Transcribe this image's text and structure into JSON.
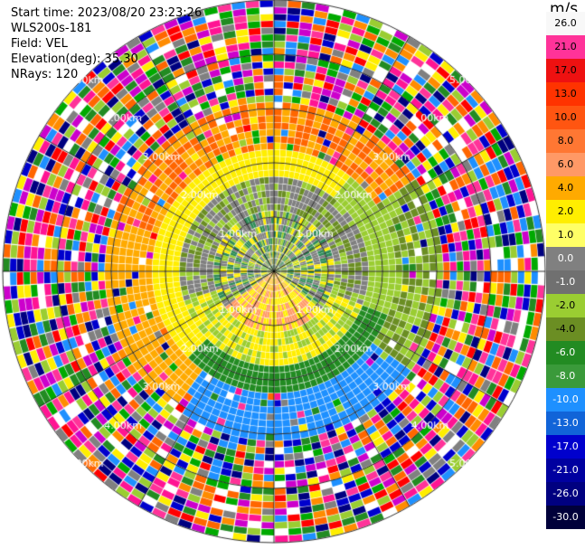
{
  "header": {
    "start_time": "Start time: 2023/08/20 23:23:26",
    "instrument": "WLS200s-181",
    "field": "Field: VEL",
    "elevation": "Elevation(deg): 35.30",
    "nrays": "NRays: 120"
  },
  "colorbar": {
    "unit": "m/s",
    "ticks": [
      "26.0",
      "21.0",
      "17.0",
      "13.0",
      "10.0",
      "8.0",
      "6.0",
      "4.0",
      "2.0",
      "1.0",
      "0.0",
      "-1.0",
      "-2.0",
      "-4.0",
      "-6.0",
      "-8.0",
      "-10.0",
      "-13.0",
      "-17.0",
      "-21.0",
      "-26.0",
      "-30.0"
    ],
    "colors": [
      "#f8f8f8",
      "#ff3399",
      "#ee1111",
      "#ff3300",
      "#ff5511",
      "#ff7733",
      "#ff9966",
      "#ffaa00",
      "#ffee00",
      "#ffff66",
      "#808080",
      "#707070",
      "#9acd32",
      "#6b8e23",
      "#228b22",
      "#3a9a3a",
      "#1e90ff",
      "#1164d8",
      "#0000cd",
      "#0000a0",
      "#000080",
      "#00003a"
    ]
  },
  "range_labels": [
    "1.00km",
    "2.00km",
    "3.00km",
    "4.00km",
    "5.00km"
  ]
}
